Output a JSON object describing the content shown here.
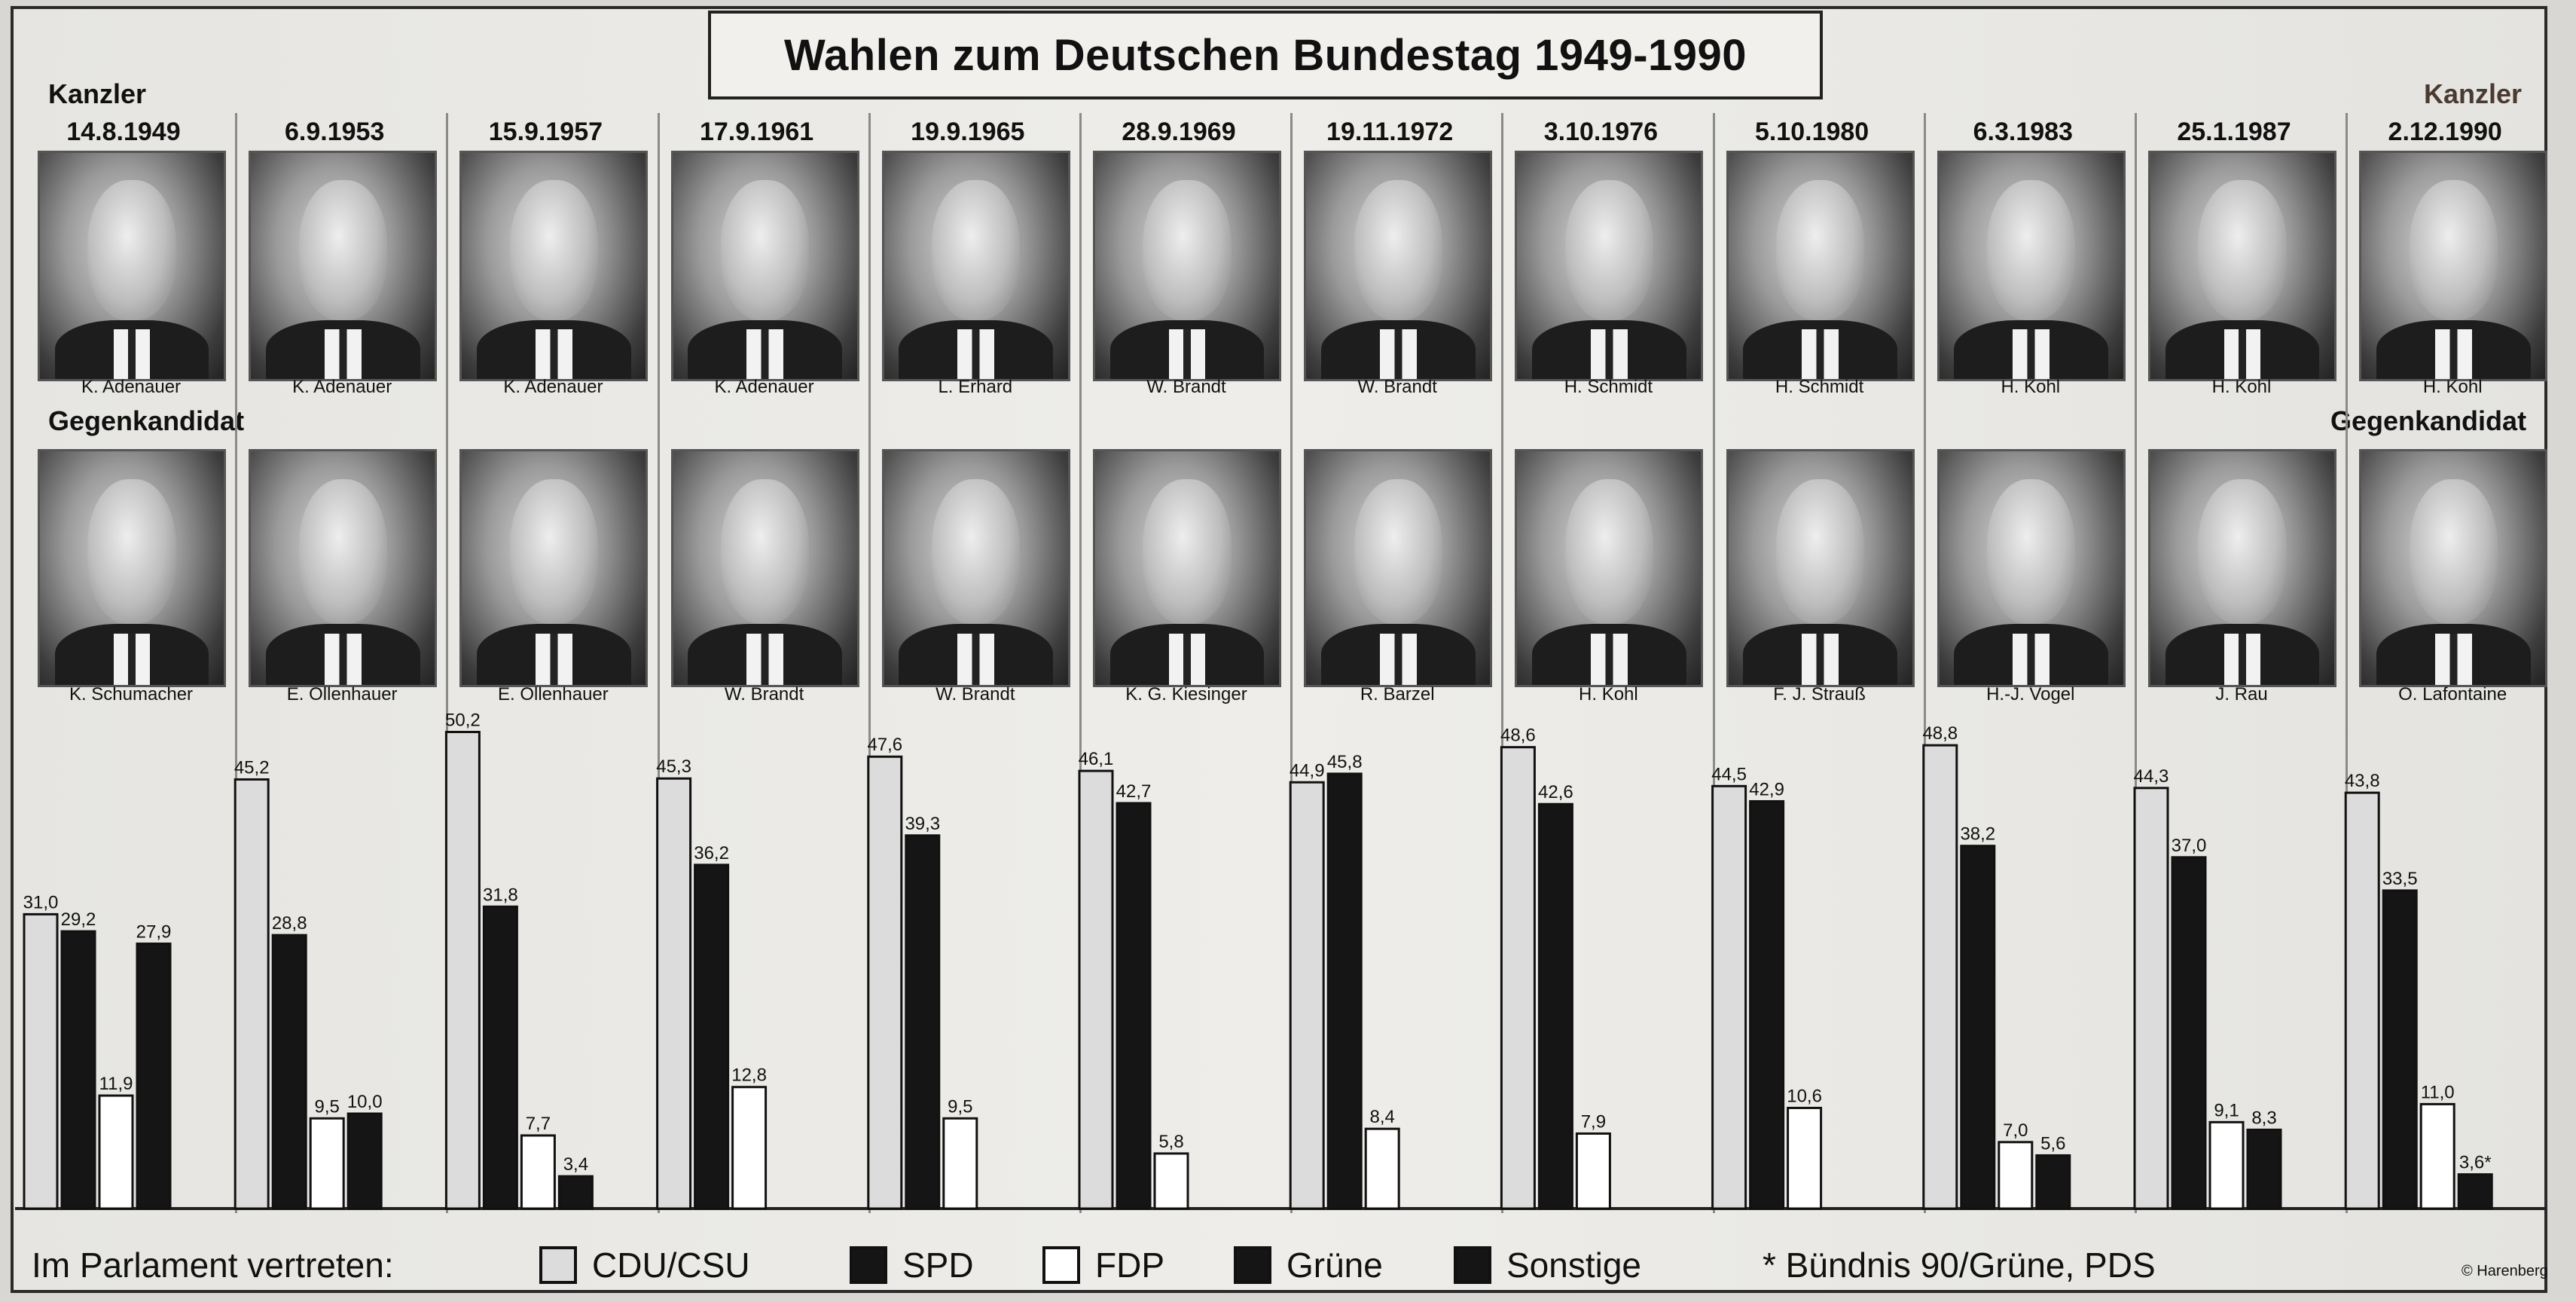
{
  "title": "Wahlen zum Deutschen Bundestag 1949-1990",
  "labels": {
    "kanzler_left": "Kanzler",
    "kanzler_right": "Kanzler",
    "gegen_left": "Gegenkandidat",
    "gegen_right": "Gegenkandidat"
  },
  "elections": [
    {
      "date": "14.8.1949",
      "kanzler": "K. Adenauer",
      "gegenkandidat": "K. Schumacher"
    },
    {
      "date": "6.9.1953",
      "kanzler": "K. Adenauer",
      "gegenkandidat": "E. Ollenhauer"
    },
    {
      "date": "15.9.1957",
      "kanzler": "K. Adenauer",
      "gegenkandidat": "E. Ollenhauer"
    },
    {
      "date": "17.9.1961",
      "kanzler": "K. Adenauer",
      "gegenkandidat": "W. Brandt"
    },
    {
      "date": "19.9.1965",
      "kanzler": "L. Erhard",
      "gegenkandidat": "W. Brandt"
    },
    {
      "date": "28.9.1969",
      "kanzler": "W. Brandt",
      "gegenkandidat": "K. G. Kiesinger"
    },
    {
      "date": "19.11.1972",
      "kanzler": "W. Brandt",
      "gegenkandidat": "R. Barzel"
    },
    {
      "date": "3.10.1976",
      "kanzler": "H. Schmidt",
      "gegenkandidat": "H. Kohl"
    },
    {
      "date": "5.10.1980",
      "kanzler": "H. Schmidt",
      "gegenkandidat": "F. J. Strauß"
    },
    {
      "date": "6.3.1983",
      "kanzler": "H. Kohl",
      "gegenkandidat": "H.-J. Vogel"
    },
    {
      "date": "25.1.1987",
      "kanzler": "H. Kohl",
      "gegenkandidat": "J. Rau"
    },
    {
      "date": "2.12.1990",
      "kanzler": "H. Kohl",
      "gegenkandidat": "O. Lafontaine"
    }
  ],
  "legend": {
    "prefix": "Im Parlament vertreten:",
    "items": [
      {
        "label": "CDU/CSU",
        "color": "#dcdcdc"
      },
      {
        "label": "SPD",
        "color": "#151515"
      },
      {
        "label": "FDP",
        "color": "#ffffff"
      },
      {
        "label": "Grüne",
        "color": "#151515"
      },
      {
        "label": "Sonstige",
        "color": "#151515"
      }
    ],
    "footnote": "* Bündnis 90/Grüne, PDS"
  },
  "copyright": "© Harenberg",
  "chart_data": {
    "type": "bar",
    "categories": [
      "14.8.1949",
      "6.9.1953",
      "15.9.1957",
      "17.9.1961",
      "19.9.1965",
      "28.9.1969",
      "19.11.1972",
      "3.10.1976",
      "5.10.1980",
      "6.3.1983",
      "25.1.1987",
      "2.12.1990"
    ],
    "ylim": [
      0,
      55
    ],
    "grid": false,
    "legend_position": "bottom",
    "groups": [
      {
        "bars": [
          {
            "party": "CDU/CSU",
            "value": 31.0,
            "label": "31,0"
          },
          {
            "party": "SPD",
            "value": 29.2,
            "label": "29,2"
          },
          {
            "party": "FDP",
            "value": 11.9,
            "label": "11,9"
          },
          {
            "party": "Sonstige",
            "value": 27.9,
            "label": "27,9"
          }
        ]
      },
      {
        "bars": [
          {
            "party": "CDU/CSU",
            "value": 45.2,
            "label": "45,2"
          },
          {
            "party": "SPD",
            "value": 28.8,
            "label": "28,8"
          },
          {
            "party": "FDP",
            "value": 9.5,
            "label": "9,5"
          },
          {
            "party": "Sonstige",
            "value": 10.0,
            "label": "10,0"
          }
        ]
      },
      {
        "bars": [
          {
            "party": "CDU/CSU",
            "value": 50.2,
            "label": "50,2"
          },
          {
            "party": "SPD",
            "value": 31.8,
            "label": "31,8"
          },
          {
            "party": "FDP",
            "value": 7.7,
            "label": "7,7"
          },
          {
            "party": "Sonstige",
            "value": 3.4,
            "label": "3,4"
          }
        ]
      },
      {
        "bars": [
          {
            "party": "CDU/CSU",
            "value": 45.3,
            "label": "45,3"
          },
          {
            "party": "SPD",
            "value": 36.2,
            "label": "36,2"
          },
          {
            "party": "FDP",
            "value": 12.8,
            "label": "12,8"
          }
        ]
      },
      {
        "bars": [
          {
            "party": "CDU/CSU",
            "value": 47.6,
            "label": "47,6"
          },
          {
            "party": "SPD",
            "value": 39.3,
            "label": "39,3"
          },
          {
            "party": "FDP",
            "value": 9.5,
            "label": "9,5"
          }
        ]
      },
      {
        "bars": [
          {
            "party": "CDU/CSU",
            "value": 46.1,
            "label": "46,1"
          },
          {
            "party": "SPD",
            "value": 42.7,
            "label": "42,7"
          },
          {
            "party": "FDP",
            "value": 5.8,
            "label": "5,8"
          }
        ]
      },
      {
        "bars": [
          {
            "party": "CDU/CSU",
            "value": 44.9,
            "label": "44,9"
          },
          {
            "party": "SPD",
            "value": 45.8,
            "label": "45,8"
          },
          {
            "party": "FDP",
            "value": 8.4,
            "label": "8,4"
          }
        ]
      },
      {
        "bars": [
          {
            "party": "CDU/CSU",
            "value": 48.6,
            "label": "48,6"
          },
          {
            "party": "SPD",
            "value": 42.6,
            "label": "42,6"
          },
          {
            "party": "FDP",
            "value": 7.9,
            "label": "7,9"
          }
        ]
      },
      {
        "bars": [
          {
            "party": "CDU/CSU",
            "value": 44.5,
            "label": "44,5"
          },
          {
            "party": "SPD",
            "value": 42.9,
            "label": "42,9"
          },
          {
            "party": "FDP",
            "value": 10.6,
            "label": "10,6"
          }
        ]
      },
      {
        "bars": [
          {
            "party": "CDU/CSU",
            "value": 48.8,
            "label": "48,8"
          },
          {
            "party": "SPD",
            "value": 38.2,
            "label": "38,2"
          },
          {
            "party": "FDP",
            "value": 7.0,
            "label": "7,0"
          },
          {
            "party": "Grüne",
            "value": 5.6,
            "label": "5,6"
          }
        ]
      },
      {
        "bars": [
          {
            "party": "CDU/CSU",
            "value": 44.3,
            "label": "44,3"
          },
          {
            "party": "SPD",
            "value": 37.0,
            "label": "37,0"
          },
          {
            "party": "FDP",
            "value": 9.1,
            "label": "9,1"
          },
          {
            "party": "Grüne",
            "value": 8.3,
            "label": "8,3"
          }
        ]
      },
      {
        "bars": [
          {
            "party": "CDU/CSU",
            "value": 43.8,
            "label": "43,8"
          },
          {
            "party": "SPD",
            "value": 33.5,
            "label": "33,5"
          },
          {
            "party": "FDP",
            "value": 11.0,
            "label": "11,0"
          },
          {
            "party": "Sonstige",
            "value": 3.6,
            "label": "3,6*"
          }
        ]
      }
    ]
  }
}
